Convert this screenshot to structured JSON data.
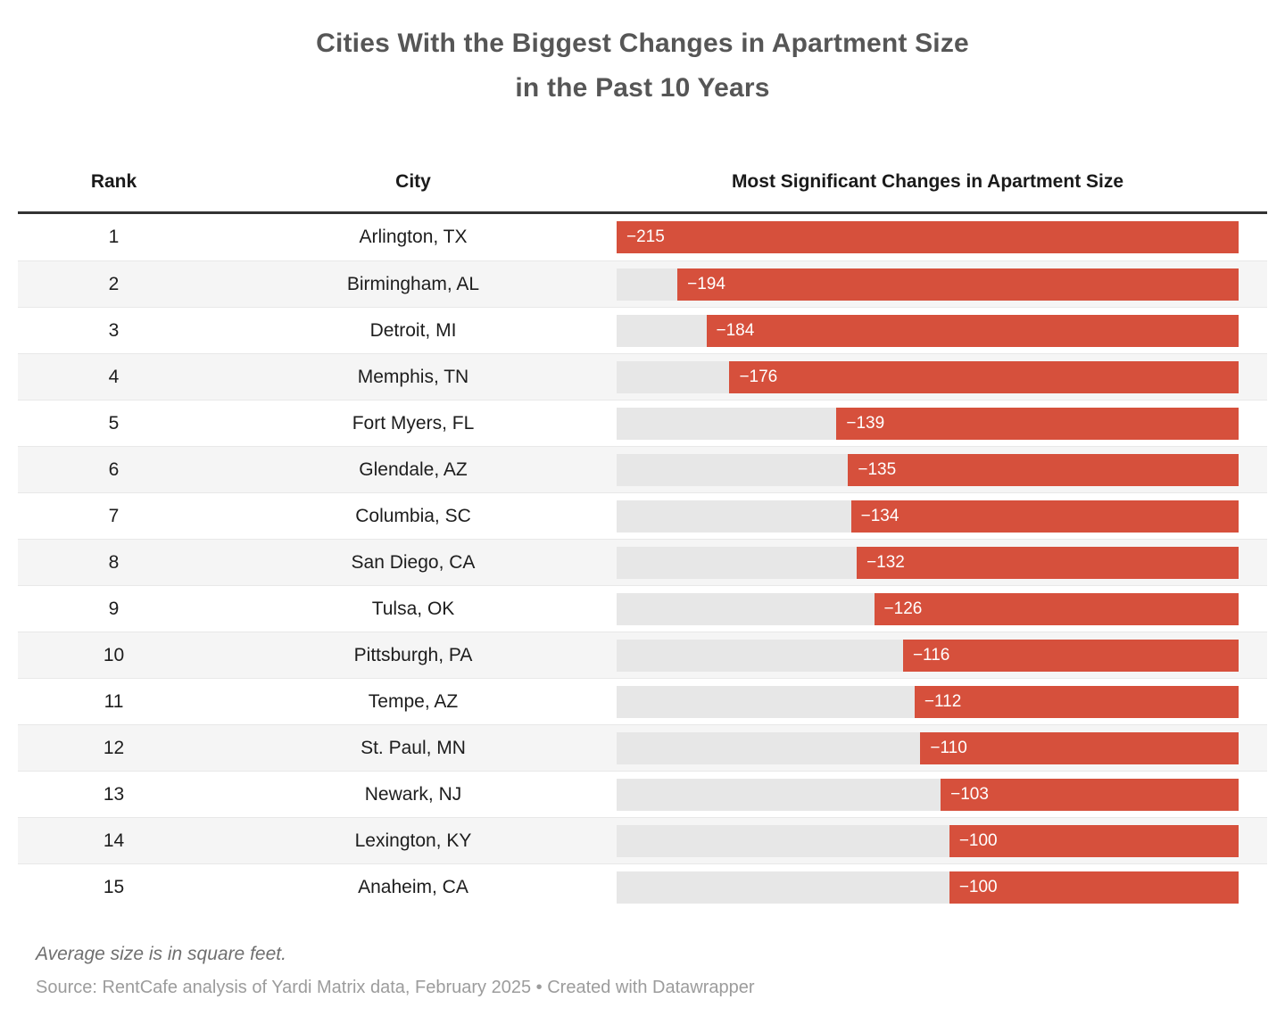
{
  "header": {
    "title_line1": "Cities With the Biggest Changes in Apartment Size",
    "title_line2": "in the Past 10 Years"
  },
  "table": {
    "columns": [
      "Rank",
      "City",
      "Most Significant Changes in Apartment Size"
    ],
    "rows": [
      {
        "rank": "1",
        "city": "Arlington, TX",
        "value": -215,
        "label": "−215"
      },
      {
        "rank": "2",
        "city": "Birmingham, AL",
        "value": -194,
        "label": "−194"
      },
      {
        "rank": "3",
        "city": "Detroit, MI",
        "value": -184,
        "label": "−184"
      },
      {
        "rank": "4",
        "city": "Memphis, TN",
        "value": -176,
        "label": "−176"
      },
      {
        "rank": "5",
        "city": "Fort Myers, FL",
        "value": -139,
        "label": "−139"
      },
      {
        "rank": "6",
        "city": "Glendale, AZ",
        "value": -135,
        "label": "−135"
      },
      {
        "rank": "7",
        "city": "Columbia, SC",
        "value": -134,
        "label": "−134"
      },
      {
        "rank": "8",
        "city": "San Diego, CA",
        "value": -132,
        "label": "−132"
      },
      {
        "rank": "9",
        "city": "Tulsa, OK",
        "value": -126,
        "label": "−126"
      },
      {
        "rank": "10",
        "city": "Pittsburgh, PA",
        "value": -116,
        "label": "−116"
      },
      {
        "rank": "11",
        "city": "Tempe, AZ",
        "value": -112,
        "label": "−112"
      },
      {
        "rank": "12",
        "city": "St. Paul, MN",
        "value": -110,
        "label": "−110"
      },
      {
        "rank": "13",
        "city": "Newark, NJ",
        "value": -103,
        "label": "−103"
      },
      {
        "rank": "14",
        "city": "Lexington, KY",
        "value": -100,
        "label": "−100"
      },
      {
        "rank": "15",
        "city": "Anaheim, CA",
        "value": -100,
        "label": "−100"
      }
    ]
  },
  "chart_data": {
    "type": "bar",
    "orientation": "horizontal",
    "bars_aligned": "right",
    "categories": [
      "Arlington, TX",
      "Birmingham, AL",
      "Detroit, MI",
      "Memphis, TN",
      "Fort Myers, FL",
      "Glendale, AZ",
      "Columbia, SC",
      "San Diego, CA",
      "Tulsa, OK",
      "Pittsburgh, PA",
      "Tempe, AZ",
      "St. Paul, MN",
      "Newark, NJ",
      "Lexington, KY",
      "Anaheim, CA"
    ],
    "values": [
      -215,
      -194,
      -184,
      -176,
      -139,
      -135,
      -134,
      -132,
      -126,
      -116,
      -112,
      -110,
      -103,
      -100,
      -100
    ],
    "title": "Cities With the Biggest Changes in Apartment Size in the Past 10 Years",
    "xlabel": "Most Significant Changes in Apartment Size",
    "ylabel": "City",
    "xlim": [
      0,
      215
    ],
    "grid": false,
    "legend": false,
    "unit_note": "Average size is in square feet."
  },
  "colors": {
    "bar": "#d6503c",
    "track": "#e7e7e7",
    "stripe": "#f5f5f5",
    "header_rule": "#333333",
    "title_text": "#565656"
  },
  "footer": {
    "note": "Average size is in square feet.",
    "source": "Source: RentCafe analysis of Yardi Matrix data, February 2025 • Created with Datawrapper"
  }
}
